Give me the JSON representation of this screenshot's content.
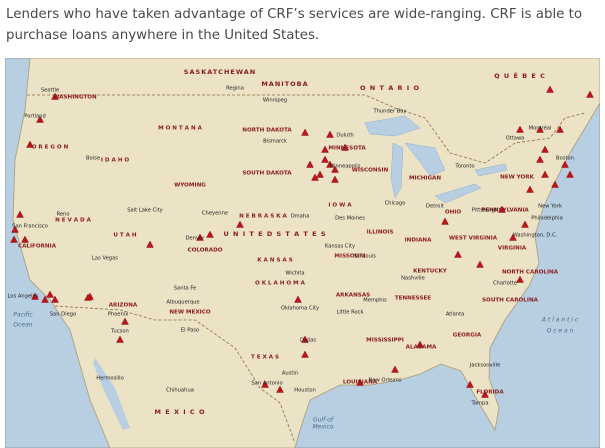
{
  "intro": [
    "Lenders who have taken advantage of CRF’s services are wide-ranging. CRF is able to",
    "purchase loans anywhere in the United States."
  ],
  "map": {
    "regions": [
      "SASKATCHEWAN",
      "MANITOBA",
      "O N T A R I O",
      "Q U É B E C",
      "U N I T E D   S T A T E S",
      "M E X I C O"
    ],
    "states": [
      "WASHINGTON",
      "O R E G O N",
      "I D A H O",
      "M O N T A N A",
      "WYOMING",
      "N E V A D A",
      "U T A H",
      "CALIFORNIA",
      "ARIZONA",
      "NEW MEXICO",
      "COLORADO",
      "NORTH DAKOTA",
      "SOUTH DAKOTA",
      "N E B R A S K A",
      "K A N S A S",
      "O K L A H O M A",
      "T E X A S",
      "MINNESOTA",
      "I O W A",
      "MISSOURI",
      "ARKANSAS",
      "LOUISIANA",
      "WISCONSIN",
      "ILLINOIS",
      "MICHIGAN",
      "INDIANA",
      "OHIO",
      "KENTUCKY",
      "TENNESSEE",
      "MISSISSIPPI",
      "ALABAMA",
      "GEORGIA",
      "FLORIDA",
      "SOUTH CAROLINA",
      "NORTH CAROLINA",
      "VIRGINIA",
      "WEST VIRGINIA",
      "PENNSYLVANIA",
      "NEW YORK"
    ],
    "cities": [
      "Seattle",
      "Portland",
      "Boise",
      "Salt Lake City",
      "Reno",
      "San Francisco",
      "Las Vegas",
      "Los Angeles",
      "San Diego",
      "Phoenix",
      "Tucson",
      "Denver",
      "Cheyenne",
      "Santa Fe",
      "Albuquerque",
      "El Paso",
      "Omaha",
      "Des Moines",
      "Kansas City",
      "Wichita",
      "Oklahoma City",
      "Dallas",
      "Austin",
      "San Antonio",
      "Houston",
      "New Orleans",
      "Little Rock",
      "Memphis",
      "Nashville",
      "St. Louis",
      "Atlanta",
      "Chicago",
      "Detroit",
      "Toronto",
      "Ottawa",
      "Montréal",
      "Boston",
      "New York",
      "Philadelphia",
      "Washington, D.C.",
      "Pittsburgh",
      "Charlotte",
      "Jacksonville",
      "Tampa",
      "Minneapolis",
      "Duluth",
      "Bismarck",
      "Regina",
      "Winnipeg",
      "Thunder Bay",
      "Chihuahua",
      "Hermosillo"
    ],
    "water": [
      "Pacific",
      "Ocean",
      "A t l a n t i c",
      "O c e a n",
      "Gulf of",
      "Mexico"
    ]
  }
}
